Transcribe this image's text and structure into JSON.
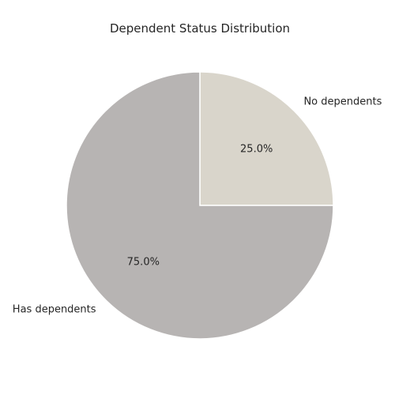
{
  "chart_data": {
    "type": "pie",
    "title": "Dependent Status Distribution",
    "slices": [
      {
        "label": "No dependents",
        "value": 25.0,
        "pct_label": "25.0%",
        "color": "#d9d5cb"
      },
      {
        "label": "Has dependents",
        "value": 75.0,
        "pct_label": "75.0%",
        "color": "#b7b4b3"
      }
    ],
    "start_angle_deg": 90,
    "direction": "clockwise",
    "edge_color": "#ffffff"
  }
}
